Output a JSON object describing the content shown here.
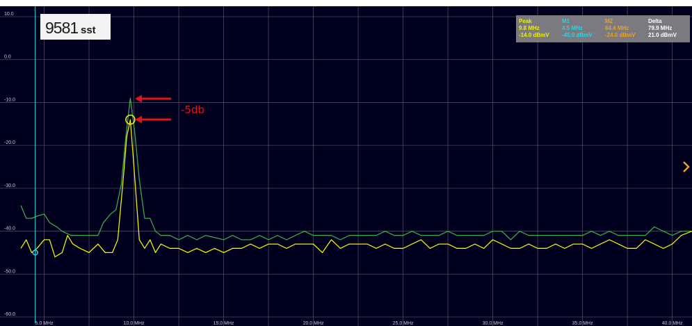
{
  "logo": {
    "number": "9581",
    "suffix": "sst"
  },
  "nav_icon": "chevron-right-icon",
  "annotation": {
    "label": "-5db",
    "arrow_icon": "arrow-left-icon",
    "color": "#e0141b"
  },
  "markers": {
    "peak": {
      "title": "Peak",
      "freq": "9.8 MHz",
      "level": "-14.0 dBmV",
      "color": "#f0f000"
    },
    "m1": {
      "title": "M1",
      "freq": "4.5 MHz",
      "level": "-45.0 dBmV",
      "color": "#2ad4e6"
    },
    "m2": {
      "title": "M2",
      "freq": "84.4 MHz",
      "level": "-24.0 dBmV",
      "color": "#f0a020"
    },
    "delta": {
      "title": "Delta",
      "freq": "79.9 MHz",
      "level": "21.0 dBmV",
      "color": "#ffffff"
    }
  },
  "colors": {
    "background": "#00001e",
    "grid": "#4a4a62",
    "legend_bg": "#7a7a80"
  },
  "chart_data": {
    "type": "line",
    "ylim": [
      -60,
      10
    ],
    "xlim": [
      3.7,
      41.1
    ],
    "yticks": [
      "10.0",
      "0.0",
      "-10.0",
      "-20.0",
      "-30.0",
      "-40.0",
      "-50.0",
      "-60.0"
    ],
    "xticks": [
      "5.0 MHz",
      "10.0 MHz",
      "15.0 MHz",
      "20.0 MHz",
      "25.0 MHz",
      "30.0 MHz",
      "35.0 MHz",
      "40.0 MHz"
    ],
    "grid": true,
    "marker_m1_x": 4.5,
    "series": [
      {
        "color": "#3aa84a",
        "x": [
          3.7,
          4.0,
          4.3,
          4.6,
          5.0,
          5.3,
          5.7,
          6.0,
          6.5,
          7.0,
          7.5,
          8.0,
          8.3,
          8.7,
          9.0,
          9.3,
          9.55,
          9.8,
          10.05,
          10.3,
          10.6,
          10.9,
          11.2,
          11.5,
          12.0,
          12.5,
          13.0,
          13.5,
          14.0,
          14.5,
          15.0,
          15.5,
          16.0,
          16.5,
          17.0,
          17.5,
          18.0,
          18.5,
          19.0,
          19.5,
          20.0,
          20.5,
          21.0,
          21.5,
          22.0,
          22.5,
          23.0,
          23.5,
          24.0,
          24.5,
          25.0,
          25.5,
          26.0,
          26.5,
          27.0,
          27.5,
          28.0,
          28.5,
          29.0,
          29.5,
          30.0,
          30.5,
          31.0,
          31.5,
          32.0,
          32.5,
          33.0,
          33.5,
          34.0,
          34.5,
          35.0,
          35.5,
          36.0,
          36.5,
          37.0,
          37.5,
          38.0,
          38.5,
          39.0,
          39.5,
          40.0,
          40.5,
          41.1
        ],
        "values": [
          -34,
          -37,
          -37,
          -36.5,
          -36,
          -38,
          -39,
          -40,
          -41,
          -41,
          -41,
          -41,
          -38,
          -36,
          -35,
          -29,
          -18,
          -9,
          -17,
          -28,
          -37,
          -37,
          -40,
          -41,
          -41,
          -42,
          -41,
          -42,
          -41,
          -41.5,
          -42,
          -41,
          -42,
          -42,
          -41,
          -42,
          -41,
          -42,
          -41,
          -40,
          -41,
          -41,
          -41,
          -42,
          -41,
          -41,
          -41,
          -41,
          -40,
          -41,
          -41,
          -40,
          -41,
          -41,
          -41,
          -40,
          -41,
          -41,
          -41,
          -41,
          -40,
          -40,
          -42,
          -40,
          -41,
          -41,
          -41,
          -41,
          -41,
          -41,
          -41,
          -40,
          -41,
          -40,
          -41,
          -41,
          -41,
          -41,
          -39,
          -40,
          -41,
          -40,
          -40
        ]
      },
      {
        "color": "#f0f000",
        "x": [
          3.7,
          4.0,
          4.3,
          4.6,
          5.0,
          5.3,
          5.6,
          6.0,
          6.3,
          6.6,
          7.0,
          7.5,
          8.0,
          8.4,
          8.8,
          9.1,
          9.4,
          9.6,
          9.8,
          10.0,
          10.3,
          10.6,
          10.9,
          11.2,
          11.5,
          12.0,
          12.5,
          13.0,
          13.5,
          14.0,
          14.5,
          15.0,
          15.5,
          16.0,
          16.5,
          17.0,
          17.5,
          18.0,
          18.5,
          19.0,
          19.5,
          20.0,
          20.5,
          21.0,
          21.5,
          22.0,
          22.5,
          23.0,
          23.5,
          24.0,
          24.5,
          25.0,
          25.5,
          26.0,
          26.5,
          27.0,
          27.5,
          28.0,
          28.5,
          29.0,
          29.5,
          30.0,
          30.5,
          31.0,
          31.5,
          32.0,
          32.5,
          33.0,
          33.5,
          34.0,
          34.5,
          35.0,
          35.5,
          36.0,
          36.5,
          37.0,
          37.5,
          38.0,
          38.5,
          39.0,
          39.5,
          40.0,
          40.5,
          41.1
        ],
        "values": [
          -44,
          -42,
          -45,
          -44,
          -42,
          -42,
          -46,
          -45,
          -41,
          -43,
          -44,
          -45,
          -43,
          -45,
          -45,
          -42,
          -28,
          -18,
          -14,
          -25,
          -42,
          -44,
          -42,
          -45,
          -43,
          -44,
          -44,
          -45,
          -44,
          -45,
          -44,
          -45,
          -44,
          -44,
          -43,
          -44,
          -43,
          -43,
          -44,
          -43,
          -43,
          -43,
          -45,
          -42,
          -44,
          -43,
          -43,
          -43,
          -44,
          -43,
          -44,
          -44,
          -43,
          -42,
          -44,
          -43,
          -43,
          -44,
          -44,
          -43,
          -44,
          -42,
          -43,
          -44,
          -44,
          -43,
          -44,
          -44,
          -43,
          -44,
          -43,
          -43,
          -44,
          -43,
          -42,
          -43,
          -44,
          -44,
          -42,
          -43,
          -44,
          -43,
          -41,
          -40
        ]
      }
    ]
  }
}
